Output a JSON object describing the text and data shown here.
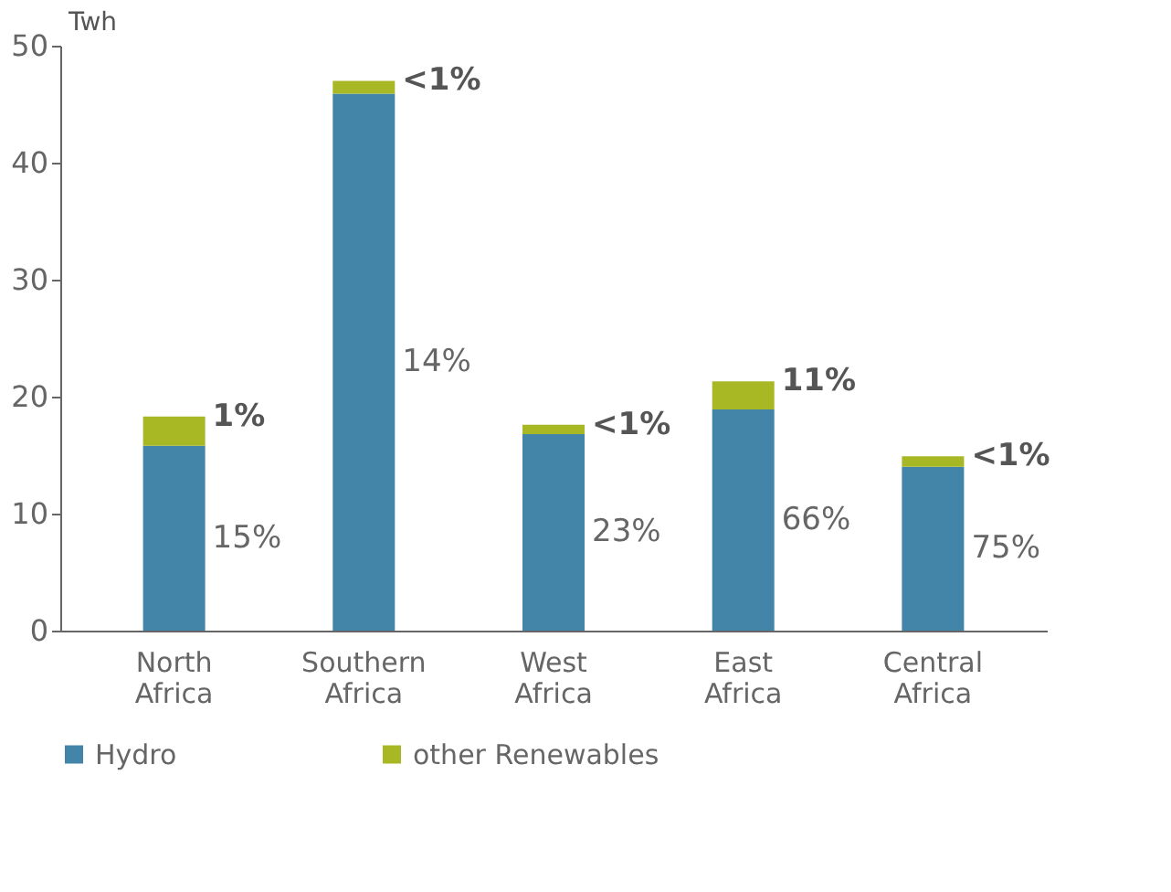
{
  "chart_data": {
    "type": "bar",
    "stacked": true,
    "ylabel": "Twh",
    "categories": [
      "North Africa",
      "Southern Africa",
      "West Africa",
      "East Africa",
      "Central Africa"
    ],
    "series": [
      {
        "name": "Hydro",
        "color": "#4285a8",
        "values": [
          15.8,
          45.9,
          16.8,
          18.9,
          14.0
        ]
      },
      {
        "name": "other Renewables",
        "color": "#a8b825",
        "values": [
          2.5,
          1.1,
          0.8,
          2.4,
          0.9
        ]
      }
    ],
    "annotations": [
      "15%",
      "14%",
      "23%",
      "66%",
      "75%",
      "1%",
      "<1%",
      "<1%",
      "11%",
      "<1%"
    ],
    "ylim": [
      0,
      50
    ],
    "yticks": [
      0,
      10,
      20,
      30,
      40,
      50
    ],
    "grid": false,
    "legend": "bottom"
  }
}
